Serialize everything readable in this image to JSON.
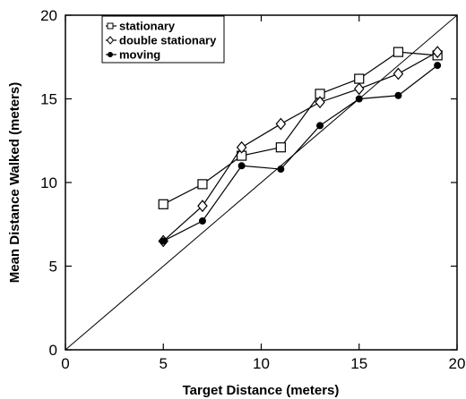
{
  "chart_data": {
    "type": "line",
    "title": "",
    "xlabel": "Target Distance (meters)",
    "ylabel": "Mean Distance Walked (meters)",
    "xlim": [
      0,
      20
    ],
    "ylim": [
      0,
      20
    ],
    "xticks": [
      "0",
      "5",
      "10",
      "15",
      "20"
    ],
    "yticks": [
      "0",
      "5",
      "10",
      "15",
      "20"
    ],
    "grid": false,
    "legend_position": "top-left",
    "reference_line": {
      "from": [
        0,
        0
      ],
      "to": [
        20,
        20
      ]
    },
    "x": [
      5,
      7,
      9,
      11,
      13,
      15,
      17,
      19
    ],
    "series": [
      {
        "name": "stationary",
        "marker": "square",
        "values": [
          8.7,
          9.9,
          11.6,
          12.1,
          15.3,
          16.2,
          17.8,
          17.6
        ]
      },
      {
        "name": "double stationary",
        "marker": "diamond",
        "values": [
          6.5,
          8.6,
          12.1,
          13.5,
          14.8,
          15.6,
          16.5,
          17.8
        ]
      },
      {
        "name": "moving",
        "marker": "filled-circle",
        "values": [
          6.5,
          7.7,
          11.0,
          10.8,
          13.4,
          15.0,
          15.2,
          17.0
        ]
      }
    ]
  }
}
